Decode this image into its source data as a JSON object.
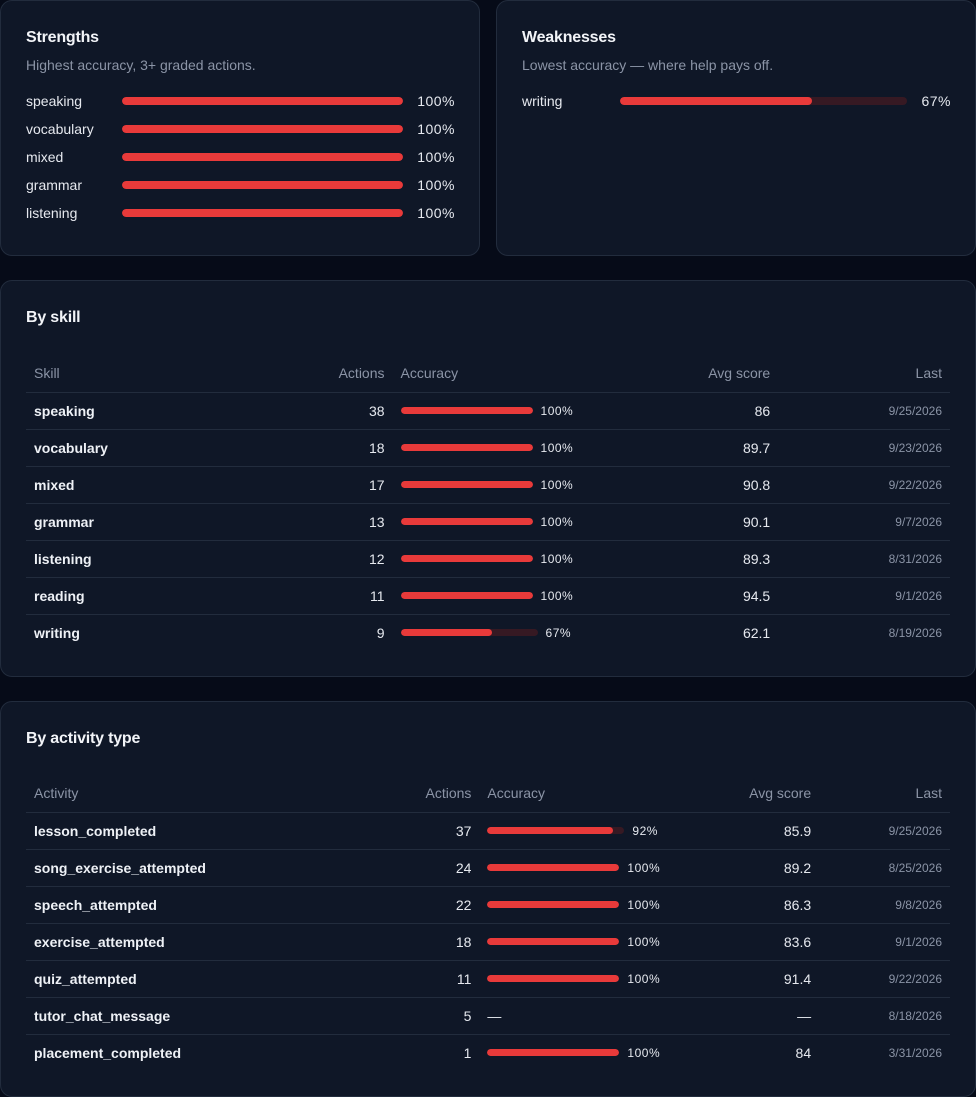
{
  "colors": {
    "bar": "#e83a3a",
    "track": "#361923",
    "card": "#0f1727",
    "bg": "#060b18"
  },
  "strengths": {
    "title": "Strengths",
    "subtitle": "Highest accuracy, 3+ graded actions.",
    "items": [
      {
        "label": "speaking",
        "pct_label": "100%",
        "value": 100
      },
      {
        "label": "vocabulary",
        "pct_label": "100%",
        "value": 100
      },
      {
        "label": "mixed",
        "pct_label": "100%",
        "value": 100
      },
      {
        "label": "grammar",
        "pct_label": "100%",
        "value": 100
      },
      {
        "label": "listening",
        "pct_label": "100%",
        "value": 100
      }
    ]
  },
  "weaknesses": {
    "title": "Weaknesses",
    "subtitle": "Lowest accuracy — where help pays off.",
    "items": [
      {
        "label": "writing",
        "pct_label": "67%",
        "value": 67
      }
    ]
  },
  "by_skill": {
    "title": "By skill",
    "headers": {
      "name": "Skill",
      "actions": "Actions",
      "accuracy": "Accuracy",
      "avg": "Avg score",
      "last": "Last"
    },
    "rows": [
      {
        "name": "speaking",
        "actions": "38",
        "accuracy": 100,
        "accuracy_label": "100%",
        "avg": "86",
        "last": "9/25/2026"
      },
      {
        "name": "vocabulary",
        "actions": "18",
        "accuracy": 100,
        "accuracy_label": "100%",
        "avg": "89.7",
        "last": "9/23/2026"
      },
      {
        "name": "mixed",
        "actions": "17",
        "accuracy": 100,
        "accuracy_label": "100%",
        "avg": "90.8",
        "last": "9/22/2026"
      },
      {
        "name": "grammar",
        "actions": "13",
        "accuracy": 100,
        "accuracy_label": "100%",
        "avg": "90.1",
        "last": "9/7/2026"
      },
      {
        "name": "listening",
        "actions": "12",
        "accuracy": 100,
        "accuracy_label": "100%",
        "avg": "89.3",
        "last": "8/31/2026"
      },
      {
        "name": "reading",
        "actions": "11",
        "accuracy": 100,
        "accuracy_label": "100%",
        "avg": "94.5",
        "last": "9/1/2026"
      },
      {
        "name": "writing",
        "actions": "9",
        "accuracy": 67,
        "accuracy_label": "67%",
        "avg": "62.1",
        "last": "8/19/2026"
      }
    ]
  },
  "by_activity": {
    "title": "By activity type",
    "headers": {
      "name": "Activity",
      "actions": "Actions",
      "accuracy": "Accuracy",
      "avg": "Avg score",
      "last": "Last"
    },
    "rows": [
      {
        "name": "lesson_completed",
        "actions": "37",
        "accuracy": 92,
        "accuracy_label": "92%",
        "avg": "85.9",
        "last": "9/25/2026"
      },
      {
        "name": "song_exercise_attempted",
        "actions": "24",
        "accuracy": 100,
        "accuracy_label": "100%",
        "avg": "89.2",
        "last": "8/25/2026"
      },
      {
        "name": "speech_attempted",
        "actions": "22",
        "accuracy": 100,
        "accuracy_label": "100%",
        "avg": "86.3",
        "last": "9/8/2026"
      },
      {
        "name": "exercise_attempted",
        "actions": "18",
        "accuracy": 100,
        "accuracy_label": "100%",
        "avg": "83.6",
        "last": "9/1/2026"
      },
      {
        "name": "quiz_attempted",
        "actions": "11",
        "accuracy": 100,
        "accuracy_label": "100%",
        "avg": "91.4",
        "last": "9/22/2026"
      },
      {
        "name": "tutor_chat_message",
        "actions": "5",
        "accuracy": null,
        "accuracy_label": "—",
        "avg": "—",
        "last": "8/18/2026"
      },
      {
        "name": "placement_completed",
        "actions": "1",
        "accuracy": 100,
        "accuracy_label": "100%",
        "avg": "84",
        "last": "3/31/2026"
      }
    ]
  }
}
